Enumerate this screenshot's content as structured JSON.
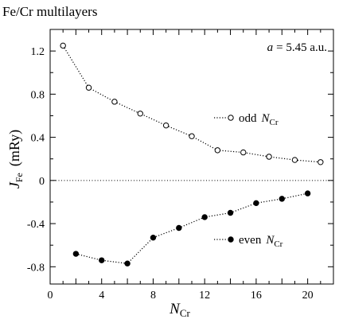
{
  "chart_data": {
    "type": "scatter",
    "title": "Fe/Cr multilayers",
    "annotation": {
      "lhs": "a",
      "rhs": "= 5.45  a.u."
    },
    "xlabel": {
      "main": "N",
      "sub": "Cr"
    },
    "ylabel": {
      "main": "J",
      "sub": "Fe",
      "rest": "(mRy)"
    },
    "xlim": [
      0,
      22
    ],
    "ylim": [
      -0.96,
      1.4
    ],
    "x_ticks": [
      0,
      4,
      8,
      12,
      16,
      20
    ],
    "x_tick_labels": [
      "0",
      "4",
      "8",
      "12",
      "16",
      "20"
    ],
    "y_ticks": [
      1.2,
      0.8,
      0.4,
      0,
      -0.4,
      -0.8
    ],
    "y_tick_labels": [
      "1.2",
      "0.8",
      "0.4",
      "0",
      "-0.4",
      "-0.8"
    ],
    "reference_line": {
      "y": 0,
      "style": "dotted"
    },
    "series": [
      {
        "name": "odd N_Cr",
        "legend_main": "odd",
        "legend_var": "N",
        "legend_sub": "Cr",
        "marker": "open-circle",
        "x": [
          1,
          3,
          5,
          7,
          9,
          11,
          13,
          15,
          17,
          19,
          21
        ],
        "y": [
          1.25,
          0.86,
          0.73,
          0.62,
          0.51,
          0.41,
          0.28,
          0.26,
          0.22,
          0.19,
          0.17
        ]
      },
      {
        "name": "even N_Cr",
        "legend_main": "even",
        "legend_var": "N",
        "legend_sub": "Cr",
        "marker": "filled-circle",
        "x": [
          2,
          4,
          6,
          8,
          10,
          12,
          14,
          16,
          18,
          20
        ],
        "y": [
          -0.68,
          -0.74,
          -0.77,
          -0.53,
          -0.44,
          -0.34,
          -0.3,
          -0.21,
          -0.17,
          -0.12
        ]
      }
    ]
  }
}
